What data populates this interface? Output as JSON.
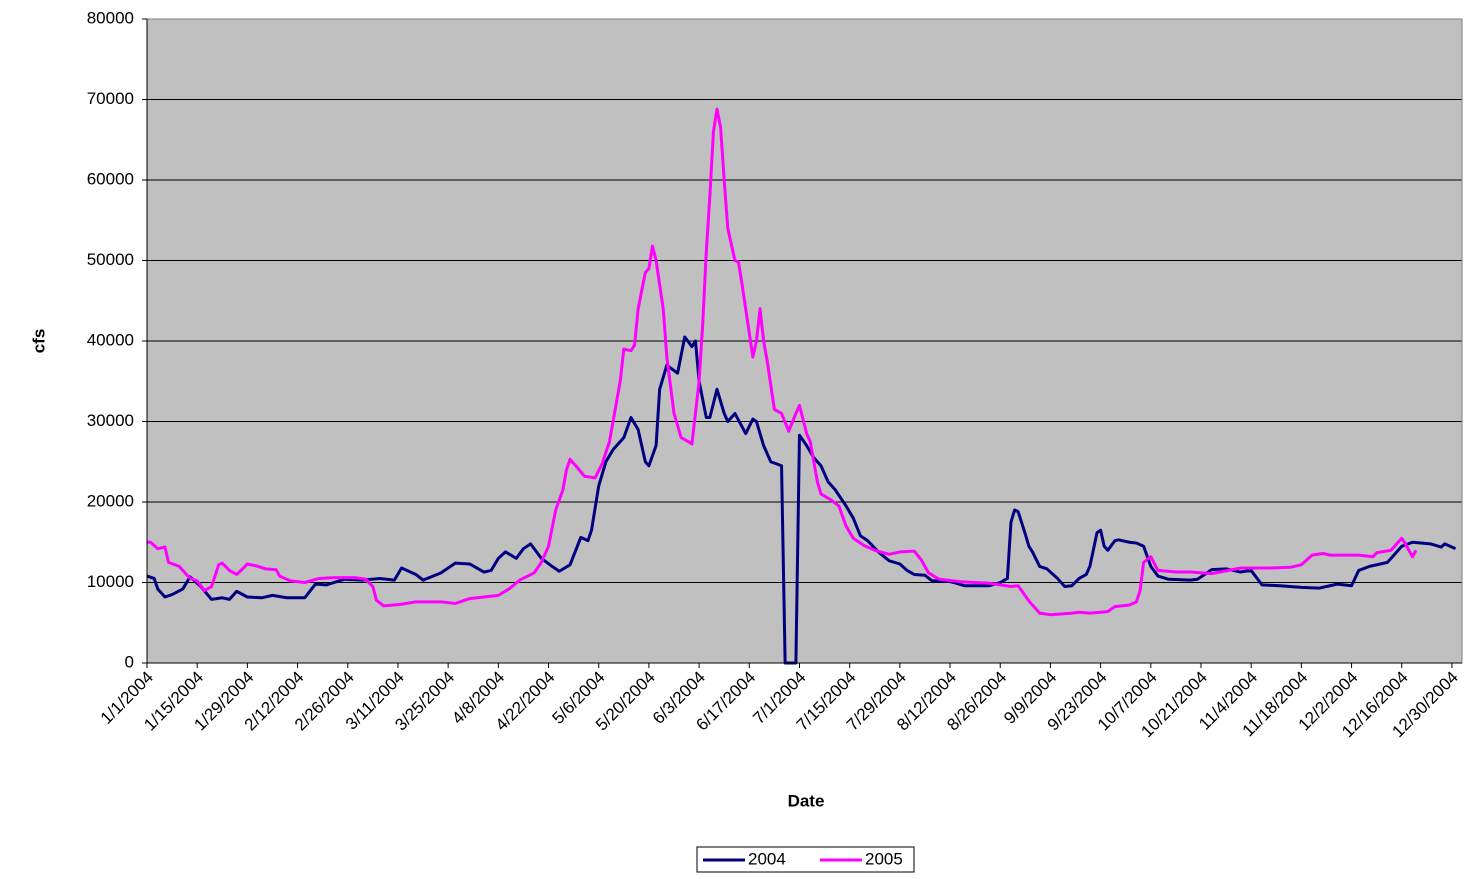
{
  "chart_data": {
    "type": "line",
    "x_label": "Date",
    "y_label": "cfs",
    "xlim": [
      "1/1/2004",
      "12/31/2004"
    ],
    "xticks": [
      "1/1/2004",
      "1/15/2004",
      "1/29/2004",
      "2/12/2004",
      "2/26/2004",
      "3/11/2004",
      "3/25/2004",
      "4/8/2004",
      "4/22/2004",
      "5/6/2004",
      "5/20/2004",
      "6/3/2004",
      "6/17/2004",
      "7/1/2004",
      "7/15/2004",
      "7/29/2004",
      "8/12/2004",
      "8/26/2004",
      "9/9/2004",
      "9/23/2004",
      "10/7/2004",
      "10/21/2004",
      "11/4/2004",
      "11/18/2004",
      "12/2/2004",
      "12/16/2004",
      "12/30/2004"
    ],
    "ylim": [
      0,
      80000
    ],
    "yticks": [
      0,
      10000,
      20000,
      30000,
      40000,
      50000,
      60000,
      70000,
      80000
    ],
    "grid": true,
    "legend": "bottom",
    "background": "#c0c0c0",
    "series": [
      {
        "name": "2004",
        "color": "#000080",
        "x": [
          "1/1/2004",
          "1/3/2004",
          "1/4/2004",
          "1/6/2004",
          "1/8/2004",
          "1/11/2004",
          "1/13/2004",
          "1/16/2004",
          "1/19/2004",
          "1/22/2004",
          "1/24/2004",
          "1/26/2004",
          "1/29/2004",
          "2/2/2004",
          "2/5/2004",
          "2/9/2004",
          "2/12/2004",
          "2/14/2004",
          "2/17/2004",
          "2/20/2004",
          "2/25/2004",
          "3/1/2004",
          "3/6/2004",
          "3/10/2004",
          "3/12/2004",
          "3/16/2004",
          "3/18/2004",
          "3/23/2004",
          "3/27/2004",
          "3/31/2004",
          "4/4/2004",
          "4/6/2004",
          "4/8/2004",
          "4/10/2004",
          "4/13/2004",
          "4/15/2004",
          "4/17/2004",
          "4/20/2004",
          "4/23/2004",
          "4/25/2004",
          "4/28/2004",
          "5/1/2004",
          "5/3/2004",
          "5/4/2004",
          "5/6/2004",
          "5/8/2004",
          "5/10/2004",
          "5/13/2004",
          "5/15/2004",
          "5/17/2004",
          "5/19/2004",
          "5/20/2004",
          "5/22/2004",
          "5/23/2004",
          "5/25/2004",
          "5/28/2004",
          "5/30/2004",
          "6/1/2004",
          "6/2/2004",
          "6/3/2004",
          "6/5/2004",
          "6/6/2004",
          "6/8/2004",
          "6/10/2004",
          "6/11/2004",
          "6/13/2004",
          "6/16/2004",
          "6/18/2004",
          "6/19/2004",
          "6/21/2004",
          "6/23/2004",
          "6/26/2004",
          "6/27/2004",
          "6/30/2004",
          "7/1/2004",
          "7/3/2004",
          "7/5/2004",
          "7/7/2004",
          "7/9/2004",
          "7/11/2004",
          "7/14/2004",
          "7/16/2004",
          "7/18/2004",
          "7/20/2004",
          "7/23/2004",
          "7/26/2004",
          "7/29/2004",
          "7/31/2004",
          "8/2/2004",
          "8/5/2004",
          "8/7/2004",
          "8/11/2004",
          "8/13/2004",
          "8/16/2004",
          "8/23/2004",
          "8/26/2004",
          "8/28/2004",
          "8/29/2004",
          "8/30/2004",
          "8/31/2004",
          "9/2/2004",
          "9/3/2004",
          "9/4/2004",
          "9/6/2004",
          "9/8/2004",
          "9/11/2004",
          "9/13/2004",
          "9/15/2004",
          "9/17/2004",
          "9/19/2004",
          "9/20/2004",
          "9/22/2004",
          "9/23/2004",
          "9/24/2004",
          "9/25/2004",
          "9/27/2004",
          "9/28/2004",
          "10/1/2004",
          "10/3/2004",
          "10/5/2004",
          "10/7/2004",
          "10/9/2004",
          "10/12/2004",
          "10/18/2004",
          "10/20/2004",
          "10/22/2004",
          "10/24/2004",
          "10/28/2004",
          "11/1/2004",
          "11/4/2004",
          "11/7/2004",
          "11/12/2004",
          "11/18/2004",
          "11/23/2004",
          "11/25/2004",
          "11/28/2004",
          "12/2/2004",
          "12/4/2004",
          "12/7/2004",
          "12/10/2004",
          "12/12/2004",
          "12/14/2004",
          "12/16/2004",
          "12/19/2004",
          "12/24/2004",
          "12/27/2004",
          "12/28/2004",
          "12/31/2004"
        ],
        "values": [
          10800,
          10500,
          9200,
          8200,
          8500,
          9200,
          10700,
          9500,
          7900,
          8100,
          7900,
          8900,
          8200,
          8100,
          8400,
          8100,
          8100,
          8100,
          9800,
          9700,
          10400,
          10300,
          10500,
          10300,
          11800,
          11000,
          10300,
          11200,
          12400,
          12300,
          11300,
          11500,
          13000,
          13800,
          13000,
          14200,
          14800,
          13000,
          12000,
          11400,
          12200,
          15600,
          15200,
          16500,
          22000,
          25000,
          26500,
          28000,
          30500,
          29000,
          25000,
          24500,
          27000,
          34000,
          37000,
          36000,
          40500,
          39300,
          40000,
          35000,
          30500,
          30500,
          34000,
          31000,
          30000,
          31000,
          28500,
          30300,
          30000,
          27000,
          25000,
          24500,
          0,
          0,
          28300,
          27000,
          25500,
          24500,
          22500,
          21500,
          19500,
          18000,
          15800,
          15200,
          13800,
          12700,
          12300,
          11500,
          11000,
          10900,
          10200,
          10200,
          10000,
          9600,
          9600,
          10000,
          10500,
          17500,
          19000,
          18800,
          16000,
          14500,
          13800,
          12000,
          11700,
          10500,
          9500,
          9600,
          10500,
          11000,
          12000,
          16200,
          16500,
          14500,
          14000,
          15200,
          15300,
          15000,
          14900,
          14500,
          12000,
          10800,
          10400,
          10300,
          10400,
          11000,
          11600,
          11700,
          11300,
          11500,
          9700,
          9600,
          9400,
          9300,
          9500,
          9800,
          9600,
          11500,
          12000,
          12300,
          12500,
          13500,
          14500,
          15000,
          14800,
          14400,
          14800,
          14200
        ]
      },
      {
        "name": "2005",
        "color": "#ff00ff",
        "x": [
          "1/1/2004",
          "1/2/2004",
          "1/4/2004",
          "1/6/2004",
          "1/7/2004",
          "1/10/2004",
          "1/13/2004",
          "1/15/2004",
          "1/17/2004",
          "1/19/2004",
          "1/21/2004",
          "1/22/2004",
          "1/24/2004",
          "1/26/2004",
          "1/27/2004",
          "1/29/2004",
          "2/1/2004",
          "2/3/2004",
          "2/6/2004",
          "2/7/2004",
          "2/10/2004",
          "2/14/2004",
          "2/18/2004",
          "2/22/2004",
          "2/28/2004",
          "3/2/2004",
          "3/4/2004",
          "3/5/2004",
          "3/7/2004",
          "3/12/2004",
          "3/16/2004",
          "3/23/2004",
          "3/27/2004",
          "3/31/2004",
          "4/4/2004",
          "4/8/2004",
          "4/11/2004",
          "4/14/2004",
          "4/18/2004",
          "4/20/2004",
          "4/22/2004",
          "4/24/2004",
          "4/26/2004",
          "4/27/2004",
          "4/28/2004",
          "4/30/2004",
          "5/2/2004",
          "5/5/2004",
          "5/7/2004",
          "5/9/2004",
          "5/10/2004",
          "5/12/2004",
          "5/13/2004",
          "5/15/2004",
          "5/16/2004",
          "5/17/2004",
          "5/19/2004",
          "5/20/2004",
          "5/21/2004",
          "5/22/2004",
          "5/24/2004",
          "5/25/2004",
          "5/27/2004",
          "5/29/2004",
          "5/31/2004",
          "6/1/2004",
          "6/3/2004",
          "6/4/2004",
          "6/5/2004",
          "6/6/2004",
          "6/7/2004",
          "6/8/2004",
          "6/9/2004",
          "6/10/2004",
          "6/11/2004",
          "6/13/2004",
          "6/14/2004",
          "6/15/2004",
          "6/17/2004",
          "6/18/2004",
          "6/19/2004",
          "6/20/2004",
          "6/21/2004",
          "6/22/2004",
          "6/24/2004",
          "6/26/2004",
          "6/28/2004",
          "6/30/2004",
          "7/1/2004",
          "7/3/2004",
          "7/4/2004",
          "7/6/2004",
          "7/7/2004",
          "7/10/2004",
          "7/12/2004",
          "7/14/2004",
          "7/16/2004",
          "7/19/2004",
          "7/22/2004",
          "7/26/2004",
          "7/29/2004",
          "8/2/2004",
          "8/4/2004",
          "8/6/2004",
          "8/9/2004",
          "8/15/2004",
          "8/23/2004",
          "8/29/2004",
          "8/31/2004",
          "9/3/2004",
          "9/6/2004",
          "9/9/2004",
          "9/15/2004",
          "9/17/2004",
          "9/20/2004",
          "9/23/2004",
          "9/25/2004",
          "9/27/2004",
          "10/1/2004",
          "10/3/2004",
          "10/4/2004",
          "10/5/2004",
          "10/7/2004",
          "10/9/2004",
          "10/14/2004",
          "10/18/2004",
          "10/24/2004",
          "11/1/2004",
          "11/9/2004",
          "11/15/2004",
          "11/18/2004",
          "11/21/2004",
          "11/24/2004",
          "11/26/2004",
          "11/30/2004",
          "12/4/2004",
          "12/8/2004",
          "12/9/2004",
          "12/13/2004",
          "12/16/2004",
          "12/17/2004",
          "12/19/2004",
          "12/20/2004"
        ],
        "values": [
          15000,
          15000,
          14200,
          14400,
          12500,
          12000,
          10500,
          10200,
          9000,
          9500,
          12200,
          12400,
          11500,
          11000,
          11400,
          12300,
          12000,
          11700,
          11600,
          10800,
          10200,
          10000,
          10500,
          10600,
          10600,
          10400,
          9500,
          7800,
          7100,
          7300,
          7600,
          7600,
          7400,
          8000,
          8200,
          8400,
          9200,
          10300,
          11200,
          12500,
          14500,
          19000,
          21500,
          24000,
          25300,
          24300,
          23200,
          23000,
          24800,
          27500,
          30000,
          35000,
          39000,
          38800,
          39500,
          44000,
          48500,
          49000,
          51800,
          50000,
          44000,
          38000,
          31000,
          28000,
          27500,
          27200,
          35000,
          42000,
          51000,
          58000,
          66000,
          68800,
          66500,
          60000,
          54000,
          50000,
          49800,
          47000,
          41000,
          38000,
          40000,
          44000,
          40000,
          37500,
          31500,
          31000,
          28800,
          31000,
          32000,
          28500,
          27500,
          22500,
          21000,
          20200,
          19500,
          17000,
          15500,
          14600,
          14000,
          13500,
          13800,
          13900,
          12800,
          11200,
          10400,
          10100,
          9900,
          9500,
          9600,
          7700,
          6200,
          6000,
          6200,
          6300,
          6200,
          6300,
          6400,
          7000,
          7200,
          7600,
          9000,
          12500,
          13200,
          11500,
          11300,
          11300,
          11100,
          11800,
          11800,
          11900,
          12200,
          13400,
          13600,
          13400,
          13400,
          13400,
          13200,
          13700,
          14000,
          15500,
          14800,
          13200,
          14000
        ]
      }
    ]
  }
}
